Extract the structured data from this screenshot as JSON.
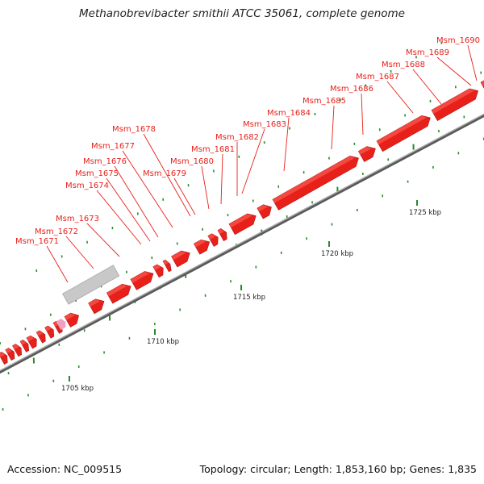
{
  "title": "Methanobrevibacter smithii ATCC 35061, complete genome",
  "footer": {
    "accession": "Accession: NC_009515",
    "summary": "Topology: circular; Length: 1,853,160 bp; Genes: 1,835"
  },
  "colors": {
    "gene": "#e8201a",
    "label": "#e8201a",
    "backbone": "#8c8c8c",
    "tick": "#2a8a2a",
    "highlight": "#c8c8c8",
    "pink": "#f0a0c0"
  },
  "gene_labels": [
    "Msm_1671",
    "Msm_1672",
    "Msm_1673",
    "Msm_1674",
    "Msm_1675",
    "Msm_1676",
    "Msm_1677",
    "Msm_1678",
    "Msm_1679",
    "Msm_1680",
    "Msm_1681",
    "Msm_1682",
    "Msm_1683",
    "Msm_1684",
    "Msm_1685",
    "Msm_1686",
    "Msm_1687",
    "Msm_1688",
    "Msm_1689",
    "Msm_1690"
  ],
  "kbp_labels": [
    "1705 kbp",
    "1710 kbp",
    "1715 kbp",
    "1720 kbp",
    "1725 kbp"
  ]
}
